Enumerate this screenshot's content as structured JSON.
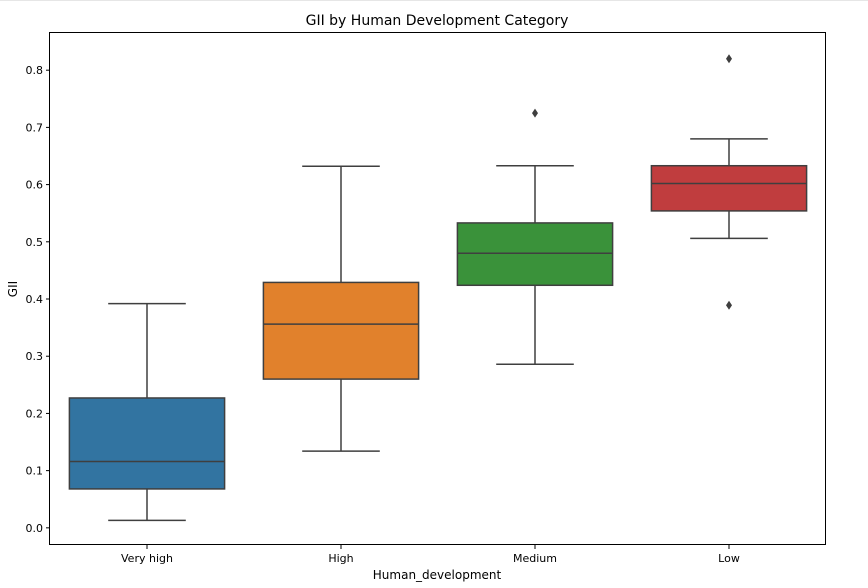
{
  "chart_data": {
    "type": "box",
    "title": "GII by Human Development Category",
    "xlabel": "Human_development",
    "ylabel": "GII",
    "ylim": [
      -0.03,
      0.865
    ],
    "yticks": [
      "0.0",
      "0.1",
      "0.2",
      "0.3",
      "0.4",
      "0.5",
      "0.6",
      "0.7",
      "0.8"
    ],
    "grid": false,
    "categories": [
      "Very high",
      "High",
      "Medium",
      "Low"
    ],
    "boxes": [
      {
        "category": "Very high",
        "whisker_low": 0.013,
        "q1": 0.068,
        "median": 0.116,
        "q3": 0.227,
        "whisker_high": 0.392,
        "outliers": [],
        "color": "#3274a1"
      },
      {
        "category": "High",
        "whisker_low": 0.134,
        "q1": 0.26,
        "median": 0.356,
        "q3": 0.429,
        "whisker_high": 0.632,
        "outliers": [],
        "color": "#e1812c"
      },
      {
        "category": "Medium",
        "whisker_low": 0.286,
        "q1": 0.424,
        "median": 0.48,
        "q3": 0.533,
        "whisker_high": 0.633,
        "outliers": [
          0.725
        ],
        "color": "#3a923a"
      },
      {
        "category": "Low",
        "whisker_low": 0.506,
        "q1": 0.554,
        "median": 0.602,
        "q3": 0.633,
        "whisker_high": 0.68,
        "outliers": [
          0.82,
          0.389
        ],
        "color": "#c03d3e"
      }
    ]
  }
}
